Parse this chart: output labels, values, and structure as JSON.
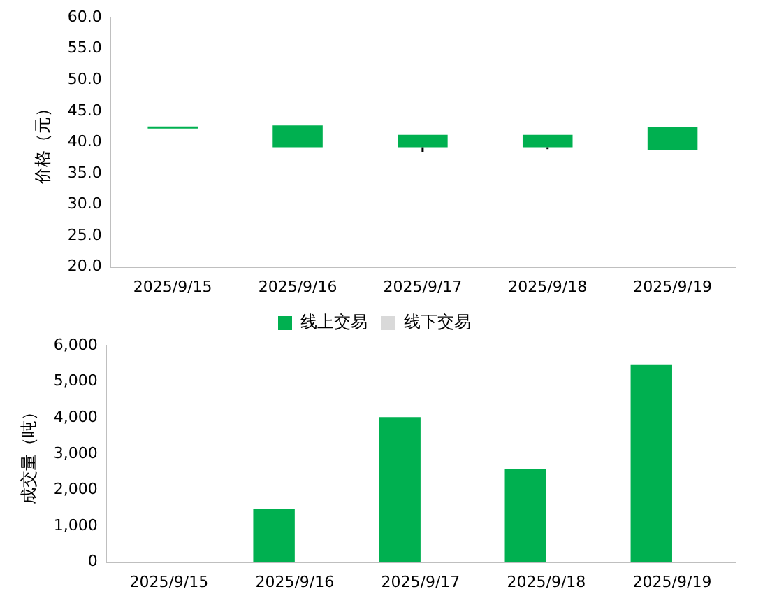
{
  "chart_data": [
    {
      "type": "candlestick",
      "categories": [
        "2025/9/15",
        "2025/9/16",
        "2025/9/17",
        "2025/9/18",
        "2025/9/19"
      ],
      "ylabel": "价格（元）",
      "ohlc": [
        [
          42.2,
          42.2,
          42.2,
          42.2
        ],
        [
          42.7,
          42.7,
          39.2,
          39.2
        ],
        [
          41.2,
          41.2,
          38.4,
          39.2
        ],
        [
          41.2,
          41.2,
          38.9,
          39.2
        ],
        [
          42.5,
          42.5,
          38.7,
          38.7
        ]
      ],
      "color": "#00b050",
      "ylim": [
        20,
        60
      ],
      "yticks": [
        {
          "value": 20,
          "label": "20.0"
        },
        {
          "value": 25,
          "label": "25.0"
        },
        {
          "value": 30,
          "label": "30.0"
        },
        {
          "value": 35,
          "label": "35.0"
        },
        {
          "value": 40,
          "label": "40.0"
        },
        {
          "value": 45,
          "label": "45.0"
        },
        {
          "value": 50,
          "label": "50.0"
        },
        {
          "value": 55,
          "label": "55.0"
        },
        {
          "value": 60,
          "label": "60.0"
        }
      ],
      "grid": false,
      "legend": false
    },
    {
      "type": "bar",
      "categories": [
        "2025/9/15",
        "2025/9/16",
        "2025/9/17",
        "2025/9/18",
        "2025/9/19"
      ],
      "ylabel": "成交量（吨）",
      "series": [
        {
          "name": "线上交易",
          "color": "#00b050",
          "values": [
            0,
            1480,
            4020,
            2570,
            5460
          ]
        },
        {
          "name": "线下交易",
          "color": "#d9d9d9",
          "values": [
            0,
            0,
            0,
            0,
            0
          ]
        }
      ],
      "ylim": [
        0,
        6000
      ],
      "yticks": [
        0,
        {
          "value": 1000,
          "label": "1,000"
        },
        {
          "value": 2000,
          "label": "2,000"
        },
        {
          "value": 3000,
          "label": "3,000"
        },
        {
          "value": 4000,
          "label": "4,000"
        },
        {
          "value": 5000,
          "label": "5,000"
        },
        {
          "value": 6000,
          "label": "6,000"
        }
      ],
      "grid": false,
      "legend": "top"
    }
  ]
}
